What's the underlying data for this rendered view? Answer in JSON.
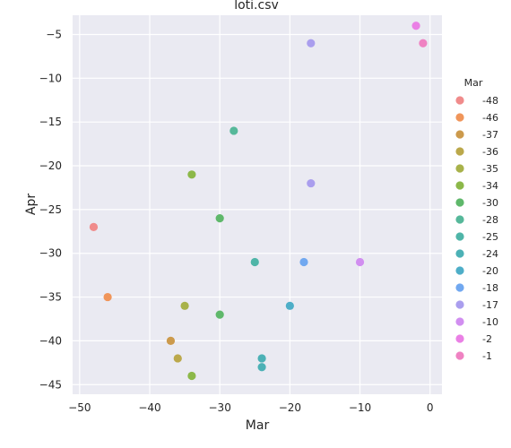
{
  "chart_data": {
    "type": "scatter",
    "title": "loti.csv",
    "xlabel": "Mar",
    "ylabel": "Apr",
    "xlim": [
      -51,
      1.7
    ],
    "ylim": [
      -46.1,
      -2.8
    ],
    "xticks": [
      -50,
      -40,
      -30,
      -20,
      -10,
      0
    ],
    "yticks": [
      -5,
      -10,
      -15,
      -20,
      -25,
      -30,
      -35,
      -40,
      -45
    ],
    "grid": true,
    "legend": {
      "title": "Mar",
      "placement": "right",
      "entries": [
        "-48",
        "-46",
        "-37",
        "-36",
        "-35",
        "-34",
        "-30",
        "-28",
        "-25",
        "-24",
        "-20",
        "-18",
        "-17",
        "-10",
        "-2",
        "-1"
      ],
      "colors": [
        "#f08b8b",
        "#f0955a",
        "#cc9a4c",
        "#bba84b",
        "#a8b24a",
        "#8cb849",
        "#5fb86b",
        "#56b89a",
        "#4fb5a8",
        "#4cb1b6",
        "#4eaec8",
        "#71a8f0",
        "#aa9eee",
        "#d18ef0",
        "#ea80e5",
        "#ef82c2"
      ]
    },
    "points": [
      {
        "x": -48,
        "y": -27,
        "group": "-48"
      },
      {
        "x": -46,
        "y": -35,
        "group": "-46"
      },
      {
        "x": -37,
        "y": -40,
        "group": "-37"
      },
      {
        "x": -36,
        "y": -42,
        "group": "-36"
      },
      {
        "x": -35,
        "y": -36,
        "group": "-35"
      },
      {
        "x": -34,
        "y": -21,
        "group": "-34"
      },
      {
        "x": -34,
        "y": -44,
        "group": "-34"
      },
      {
        "x": -30,
        "y": -26,
        "group": "-30"
      },
      {
        "x": -30,
        "y": -37,
        "group": "-30"
      },
      {
        "x": -28,
        "y": -16,
        "group": "-28"
      },
      {
        "x": -25,
        "y": -31,
        "group": "-25"
      },
      {
        "x": -24,
        "y": -42,
        "group": "-24"
      },
      {
        "x": -24,
        "y": -43,
        "group": "-24"
      },
      {
        "x": -20,
        "y": -36,
        "group": "-20"
      },
      {
        "x": -18,
        "y": -31,
        "group": "-18"
      },
      {
        "x": -17,
        "y": -6,
        "group": "-17"
      },
      {
        "x": -17,
        "y": -22,
        "group": "-17"
      },
      {
        "x": -10,
        "y": -31,
        "group": "-10"
      },
      {
        "x": -2,
        "y": -4,
        "group": "-2"
      },
      {
        "x": -1,
        "y": -6,
        "group": "-1"
      }
    ]
  }
}
